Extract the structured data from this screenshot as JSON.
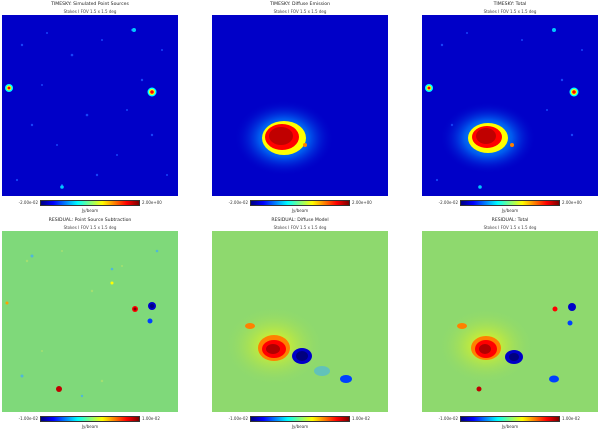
{
  "panels": [
    {
      "title": "TIMESKY: Simulated Point Sources",
      "subtitle": "Stokes I  FOV 1.5 x 1.5 deg",
      "cmin": "-2.00e-02",
      "cmax": "2.00e+00",
      "clabel": "Jy/beam"
    },
    {
      "title": "TIMESKY: Diffuse Emission",
      "subtitle": "Stokes I  FOV 1.5 x 1.5 deg",
      "cmin": "-2.00e-02",
      "cmax": "2.00e+00",
      "clabel": "Jy/beam"
    },
    {
      "title": "TIMESKY: Total",
      "subtitle": "Stokes I  FOV 1.5 x 1.5 deg",
      "cmin": "-2.00e-02",
      "cmax": "2.00e+00",
      "clabel": "Jy/beam"
    },
    {
      "title": "RESIDUAL: Point Source Subtraction",
      "subtitle": "Stokes I  FOV 1.5 x 1.5 deg",
      "cmin": "-1.00e-02",
      "cmax": "1.00e-02",
      "clabel": "Jy/beam"
    },
    {
      "title": "RESIDUAL: Diffuse Model",
      "subtitle": "Stokes I  FOV 1.5 x 1.5 deg",
      "cmin": "-1.00e-02",
      "cmax": "1.00e-02",
      "clabel": "Jy/beam"
    },
    {
      "title": "RESIDUAL: Total",
      "subtitle": "Stokes I  FOV 1.5 x 1.5 deg",
      "cmin": "-1.00e-02",
      "cmax": "1.00e-02",
      "clabel": "Jy/beam"
    }
  ],
  "colors": {
    "deep_blue": "#0000c8",
    "residual_green": "#7fd97a",
    "hot": "#ff0000",
    "core": "#7f0000"
  }
}
